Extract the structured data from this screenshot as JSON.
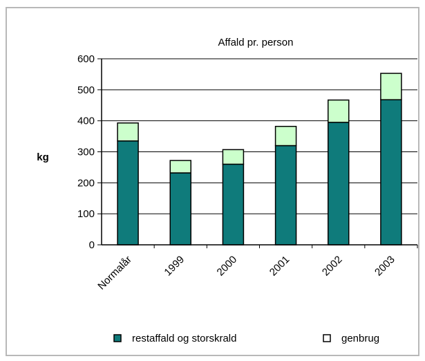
{
  "chart_data": {
    "type": "bar",
    "stacked": true,
    "title": "Affald pr. person",
    "ylabel": "kg",
    "xlabel": "",
    "categories": [
      "Normalår",
      "1999",
      "2000",
      "2001",
      "2002",
      "2003"
    ],
    "series": [
      {
        "name": "restaffald og storskrald",
        "values": [
          335,
          232,
          260,
          320,
          395,
          468
        ],
        "color": "#0f7b7b"
      },
      {
        "name": "genbrug",
        "values": [
          58,
          40,
          47,
          62,
          72,
          85
        ],
        "color": "#ccffcc"
      }
    ],
    "ylim": [
      0,
      600
    ],
    "yticks": [
      "0",
      "100",
      "200",
      "300",
      "400",
      "500",
      "600"
    ],
    "grid": true,
    "legend": "bottom"
  }
}
